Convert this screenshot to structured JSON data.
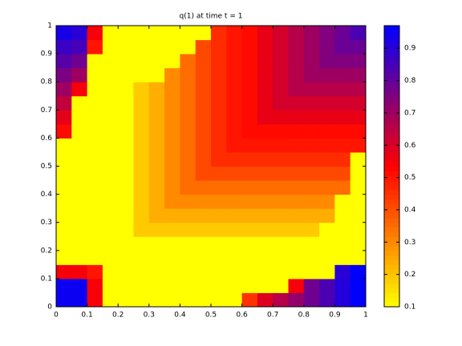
{
  "chart_data": {
    "type": "heatmap",
    "title": "q(1)   at time t = 1",
    "xlim": [
      0,
      1
    ],
    "ylim": [
      0,
      1
    ],
    "xticks": [
      0,
      0.1,
      0.2,
      0.3,
      0.4,
      0.5,
      0.6,
      0.7,
      0.8,
      0.9,
      1
    ],
    "yticks": [
      0,
      0.1,
      0.2,
      0.3,
      0.4,
      0.5,
      0.6,
      0.7,
      0.8,
      0.9,
      1
    ],
    "clim": [
      0.1,
      0.97
    ],
    "cticks": [
      0.1,
      0.2,
      0.3,
      0.4,
      0.5,
      0.6,
      0.7,
      0.8,
      0.9
    ],
    "colormap": [
      "#ffff00",
      "#ff0000",
      "#0000ff"
    ],
    "z": [
      [
        0.95,
        0.95,
        0.55,
        0.1,
        0.1,
        0.1,
        0.1,
        0.1,
        0.1,
        0.1,
        0.1,
        0.1,
        0.45,
        0.59,
        0.66,
        0.72,
        0.78,
        0.84,
        0.91,
        0.97
      ],
      [
        0.95,
        0.95,
        0.55,
        0.1,
        0.1,
        0.1,
        0.1,
        0.1,
        0.1,
        0.1,
        0.1,
        0.1,
        0.1,
        0.1,
        0.1,
        0.55,
        0.78,
        0.84,
        0.91,
        0.97
      ],
      [
        0.55,
        0.55,
        0.5,
        0.1,
        0.1,
        0.1,
        0.1,
        0.1,
        0.1,
        0.1,
        0.1,
        0.1,
        0.1,
        0.1,
        0.1,
        0.1,
        0.1,
        0.1,
        0.9,
        0.97
      ],
      [
        0.1,
        0.1,
        0.1,
        0.1,
        0.1,
        0.1,
        0.1,
        0.1,
        0.1,
        0.1,
        0.1,
        0.1,
        0.1,
        0.1,
        0.1,
        0.1,
        0.1,
        0.1,
        0.1,
        0.1
      ],
      [
        0.1,
        0.1,
        0.1,
        0.1,
        0.1,
        0.1,
        0.1,
        0.1,
        0.1,
        0.1,
        0.1,
        0.1,
        0.1,
        0.1,
        0.1,
        0.1,
        0.1,
        0.1,
        0.1,
        0.1
      ],
      [
        0.1,
        0.1,
        0.1,
        0.1,
        0.1,
        0.19,
        0.19,
        0.19,
        0.19,
        0.19,
        0.19,
        0.19,
        0.19,
        0.19,
        0.19,
        0.19,
        0.19,
        0.1,
        0.1,
        0.1
      ],
      [
        0.1,
        0.1,
        0.1,
        0.1,
        0.1,
        0.19,
        0.24,
        0.24,
        0.24,
        0.24,
        0.24,
        0.24,
        0.24,
        0.24,
        0.24,
        0.24,
        0.24,
        0.24,
        0.1,
        0.1
      ],
      [
        0.1,
        0.1,
        0.1,
        0.1,
        0.1,
        0.19,
        0.24,
        0.3,
        0.3,
        0.3,
        0.3,
        0.3,
        0.3,
        0.3,
        0.3,
        0.3,
        0.3,
        0.3,
        0.1,
        0.1
      ],
      [
        0.1,
        0.1,
        0.1,
        0.1,
        0.1,
        0.19,
        0.24,
        0.3,
        0.35,
        0.35,
        0.35,
        0.35,
        0.35,
        0.35,
        0.35,
        0.35,
        0.35,
        0.35,
        0.35,
        0.1
      ],
      [
        0.1,
        0.1,
        0.1,
        0.1,
        0.1,
        0.19,
        0.24,
        0.3,
        0.35,
        0.41,
        0.41,
        0.41,
        0.41,
        0.41,
        0.41,
        0.41,
        0.41,
        0.41,
        0.41,
        0.1
      ],
      [
        0.1,
        0.1,
        0.1,
        0.1,
        0.1,
        0.19,
        0.24,
        0.3,
        0.35,
        0.41,
        0.46,
        0.46,
        0.46,
        0.46,
        0.46,
        0.46,
        0.46,
        0.46,
        0.46,
        0.1
      ],
      [
        0.1,
        0.1,
        0.1,
        0.1,
        0.1,
        0.19,
        0.24,
        0.3,
        0.35,
        0.41,
        0.46,
        0.5,
        0.5,
        0.5,
        0.5,
        0.5,
        0.5,
        0.5,
        0.5,
        0.5
      ],
      [
        0.52,
        0.1,
        0.1,
        0.1,
        0.1,
        0.19,
        0.24,
        0.3,
        0.35,
        0.41,
        0.46,
        0.5,
        0.52,
        0.52,
        0.52,
        0.52,
        0.52,
        0.52,
        0.52,
        0.52
      ],
      [
        0.58,
        0.1,
        0.1,
        0.1,
        0.1,
        0.19,
        0.24,
        0.3,
        0.35,
        0.41,
        0.46,
        0.5,
        0.52,
        0.57,
        0.57,
        0.57,
        0.57,
        0.57,
        0.57,
        0.57
      ],
      [
        0.64,
        0.1,
        0.1,
        0.1,
        0.1,
        0.19,
        0.24,
        0.3,
        0.35,
        0.41,
        0.46,
        0.5,
        0.52,
        0.57,
        0.61,
        0.61,
        0.61,
        0.61,
        0.61,
        0.61
      ],
      [
        0.7,
        0.55,
        0.1,
        0.1,
        0.1,
        0.19,
        0.24,
        0.3,
        0.35,
        0.41,
        0.46,
        0.5,
        0.52,
        0.57,
        0.61,
        0.66,
        0.66,
        0.66,
        0.66,
        0.66
      ],
      [
        0.76,
        0.7,
        0.1,
        0.1,
        0.1,
        0.1,
        0.1,
        0.3,
        0.35,
        0.41,
        0.46,
        0.5,
        0.52,
        0.57,
        0.61,
        0.66,
        0.7,
        0.7,
        0.7,
        0.7
      ],
      [
        0.82,
        0.78,
        0.1,
        0.1,
        0.1,
        0.1,
        0.1,
        0.1,
        0.35,
        0.41,
        0.46,
        0.5,
        0.52,
        0.57,
        0.61,
        0.66,
        0.7,
        0.75,
        0.75,
        0.75
      ],
      [
        0.87,
        0.85,
        0.5,
        0.1,
        0.1,
        0.1,
        0.1,
        0.1,
        0.1,
        0.41,
        0.46,
        0.5,
        0.52,
        0.57,
        0.61,
        0.66,
        0.7,
        0.75,
        0.79,
        0.79
      ],
      [
        0.93,
        0.9,
        0.55,
        0.1,
        0.1,
        0.1,
        0.1,
        0.1,
        0.1,
        0.1,
        0.46,
        0.5,
        0.52,
        0.57,
        0.61,
        0.66,
        0.7,
        0.75,
        0.79,
        0.84
      ]
    ]
  }
}
